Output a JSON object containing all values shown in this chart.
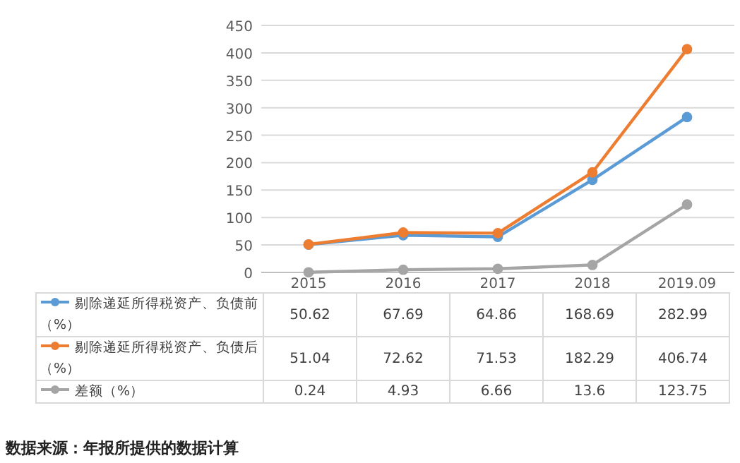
{
  "chart_data": {
    "type": "line",
    "categories": [
      "2015",
      "2016",
      "2017",
      "2018",
      "2019.09"
    ],
    "series": [
      {
        "name": "剔除递延所得税资产、负债前（%）",
        "color": "#5b9bd5",
        "values": [
          50.62,
          67.69,
          64.86,
          168.69,
          282.99
        ]
      },
      {
        "name": "剔除递延所得税资产、负债后（%）",
        "color": "#ed7d31",
        "values": [
          51.04,
          72.62,
          71.53,
          182.29,
          406.74
        ]
      },
      {
        "name": "差额（%）",
        "color": "#a5a5a5",
        "values": [
          0.24,
          4.93,
          6.66,
          13.6,
          123.75
        ]
      }
    ],
    "ylim": [
      0,
      450
    ],
    "yticks": [
      0,
      50,
      100,
      150,
      200,
      250,
      300,
      350,
      400,
      450
    ],
    "grid": "y",
    "marker": "circle",
    "data_labels": true,
    "legend": "bottom",
    "annotations": [
      "数据来源：年报所提供的数据计算"
    ]
  }
}
